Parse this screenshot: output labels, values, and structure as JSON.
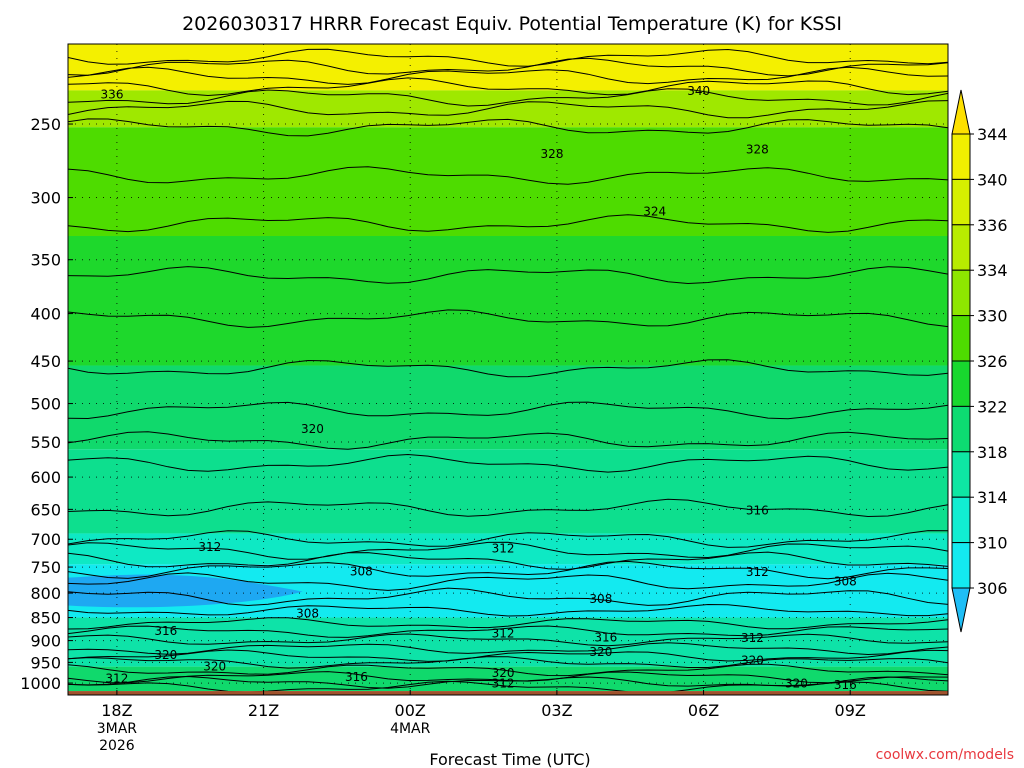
{
  "chart_data": {
    "type": "contour",
    "title": "2026030317 HRRR Forecast Equiv. Potential Temperature (K) for KSSI",
    "xlabel": "Forecast Time (UTC)",
    "credit": "coolwx.com/models",
    "x_ticks": [
      {
        "hour": 0,
        "lines": [
          "18Z",
          "3MAR",
          "2026"
        ]
      },
      {
        "hour": 3,
        "lines": [
          "21Z"
        ]
      },
      {
        "hour": 6,
        "lines": [
          "00Z",
          "4MAR"
        ]
      },
      {
        "hour": 9,
        "lines": [
          "03Z"
        ]
      },
      {
        "hour": 12,
        "lines": [
          "06Z"
        ]
      },
      {
        "hour": 15,
        "lines": [
          "09Z"
        ]
      }
    ],
    "xlim": [
      -1,
      17
    ],
    "y_ticks": [
      "250",
      "300",
      "350",
      "400",
      "450",
      "500",
      "550",
      "600",
      "650",
      "700",
      "750",
      "800",
      "850",
      "900",
      "950",
      "1000"
    ],
    "ylim_hPa": [
      1030,
      205
    ],
    "y_scale": "log",
    "colorbar": {
      "levels": [
        "344",
        "340",
        "336",
        "334",
        "330",
        "326",
        "322",
        "318",
        "314",
        "310",
        "306"
      ],
      "colors": [
        "#fde000",
        "#f1ef00",
        "#d6ef00",
        "#b8ec00",
        "#8ee600",
        "#4edc00",
        "#18d82e",
        "#0ddb72",
        "#0ee7a3",
        "#11eed2",
        "#13eaf0",
        "#1fbef6"
      ]
    },
    "filled_bands": [
      {
        "p_top": 205,
        "p_bottom": 230,
        "theta": 338,
        "color": "#f4f000"
      },
      {
        "p_top": 230,
        "p_bottom": 252,
        "theta": 334,
        "color": "#9fe800"
      },
      {
        "p_top": 252,
        "p_bottom": 330,
        "theta": 328,
        "color": "#4edc00"
      },
      {
        "p_top": 330,
        "p_bottom": 455,
        "theta": 324,
        "color": "#1ed82c"
      },
      {
        "p_top": 455,
        "p_bottom": 560,
        "theta": 321,
        "color": "#10d96c"
      },
      {
        "p_top": 560,
        "p_bottom": 690,
        "theta": 318,
        "color": "#0ddf8e"
      },
      {
        "p_top": 690,
        "p_bottom": 745,
        "theta": 313,
        "color": "#0ee9c4"
      },
      {
        "p_top": 745,
        "p_bottom": 850,
        "theta": 309,
        "color": "#13eaf0"
      },
      {
        "p_top": 850,
        "p_bottom": 960,
        "theta": 316,
        "color": "#0ee3a8"
      },
      {
        "p_top": 960,
        "p_bottom": 1020,
        "theta": 320,
        "color": "#10d96c"
      }
    ],
    "blue_pocket": {
      "hour_from": -1,
      "hour_to": 3.8,
      "p_top": 770,
      "p_bottom": 825,
      "theta": 306,
      "color": "#1ea8f2"
    },
    "ground_color": "#a0522d",
    "contour_levels_hPa": [
      212,
      217,
      222,
      228,
      234,
      241,
      252,
      284,
      320,
      364,
      405,
      458,
      508,
      548,
      580,
      648,
      700,
      720,
      738,
      755,
      778,
      808,
      835,
      862,
      880,
      898,
      918,
      935,
      950,
      968,
      985,
      998,
      1010
    ],
    "contour_labels": [
      {
        "text": "336",
        "hour": -0.1,
        "p": 232
      },
      {
        "text": "340",
        "hour": 11.9,
        "p": 230
      },
      {
        "text": "328",
        "hour": 8.9,
        "p": 269
      },
      {
        "text": "328",
        "hour": 13.1,
        "p": 266
      },
      {
        "text": "324",
        "hour": 11.0,
        "p": 310
      },
      {
        "text": "320",
        "hour": 4.0,
        "p": 532
      },
      {
        "text": "316",
        "hour": 13.1,
        "p": 651
      },
      {
        "text": "312",
        "hour": 1.9,
        "p": 713
      },
      {
        "text": "312",
        "hour": 7.9,
        "p": 715
      },
      {
        "text": "308",
        "hour": 5.0,
        "p": 757
      },
      {
        "text": "312",
        "hour": 13.1,
        "p": 758
      },
      {
        "text": "308",
        "hour": 14.9,
        "p": 776
      },
      {
        "text": "308",
        "hour": 9.9,
        "p": 811
      },
      {
        "text": "308",
        "hour": 3.9,
        "p": 840
      },
      {
        "text": "316",
        "hour": 1.0,
        "p": 878
      },
      {
        "text": "312",
        "hour": 7.9,
        "p": 883
      },
      {
        "text": "316",
        "hour": 10.0,
        "p": 892
      },
      {
        "text": "312",
        "hour": 13.0,
        "p": 893
      },
      {
        "text": "320",
        "hour": 9.9,
        "p": 925
      },
      {
        "text": "320",
        "hour": 1.0,
        "p": 932
      },
      {
        "text": "320",
        "hour": 2.0,
        "p": 958
      },
      {
        "text": "320",
        "hour": 7.9,
        "p": 974
      },
      {
        "text": "316",
        "hour": 4.9,
        "p": 984
      },
      {
        "text": "320",
        "hour": 13.0,
        "p": 944
      },
      {
        "text": "312",
        "hour": 0.0,
        "p": 988
      },
      {
        "text": "312",
        "hour": 7.9,
        "p": 1000
      },
      {
        "text": "320",
        "hour": 13.9,
        "p": 1000
      },
      {
        "text": "316",
        "hour": 14.9,
        "p": 1003
      }
    ]
  }
}
